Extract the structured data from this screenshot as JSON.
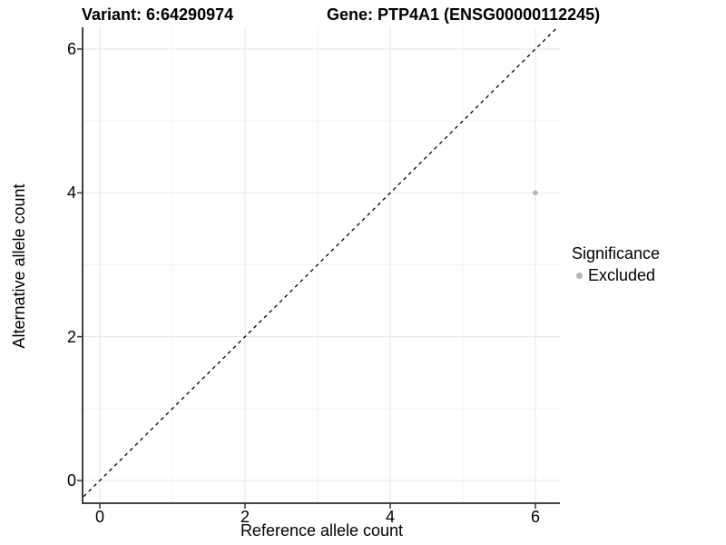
{
  "chart_data": {
    "type": "scatter",
    "title_left": "Variant: 6:64290974",
    "title_right": "Gene: PTP4A1 (ENSG00000112245)",
    "xlabel": "Reference allele count",
    "ylabel": "Alternative allele count",
    "xlim": [
      -0.25,
      6.34
    ],
    "ylim": [
      -0.3,
      6.3
    ],
    "xticks": [
      0,
      2,
      4,
      6
    ],
    "yticks": [
      0,
      2,
      4,
      6
    ],
    "minor_ticks_x": [
      1,
      3,
      5
    ],
    "minor_ticks_y": [
      1,
      3,
      5
    ],
    "grid": "major+minor",
    "legend_position": "right",
    "identity_line": {
      "style": "dashed",
      "color": "#000000",
      "comment_slope": "y = x"
    },
    "series": [
      {
        "name": "Excluded",
        "color": "#b4b4b4",
        "marker": "circle",
        "points": [
          [
            6,
            4
          ]
        ]
      }
    ],
    "legend": {
      "title": "Significance",
      "entries": [
        {
          "label": "Excluded",
          "color": "#b4b4b4"
        }
      ]
    }
  },
  "colors": {
    "background": "#ffffff",
    "axis_line": "#404040",
    "grid_major": "#e6e6e6",
    "grid_minor": "#f2f2f2",
    "text": "#000000",
    "excluded": "#b4b4b4"
  }
}
